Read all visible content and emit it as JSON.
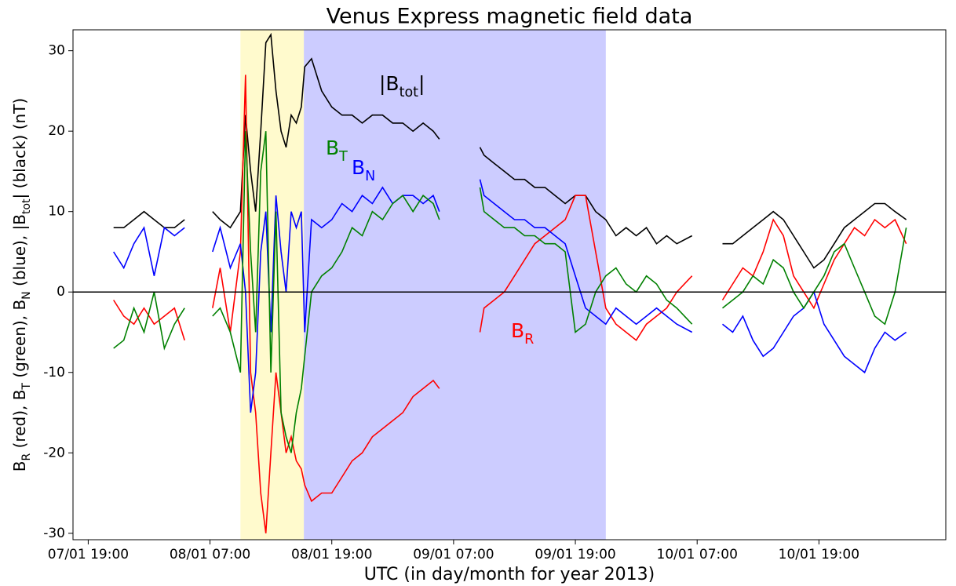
{
  "chart_data": {
    "type": "line",
    "title": "Venus Express magnetic field data",
    "xlabel": "UTC (in day/month for year 2013)",
    "ylabel": [
      "B",
      "R",
      " (red), B",
      "T",
      " (green), B",
      "N",
      " (blue), |B",
      "tot",
      "| (black) (nT)"
    ],
    "x": [
      "07/01 21:30",
      "07/01 22:30",
      "07/01 23:30",
      "08/01 00:30",
      "08/01 01:30",
      "08/01 02:30",
      "08/01 03:30",
      "08/01 04:30",
      "08/01 05:30",
      "08/01 07:15",
      "08/01 08:00",
      "08/01 09:00",
      "08/01 10:00",
      "08/01 10:30",
      "08/01 11:00",
      "08/01 11:30",
      "08/01 12:00",
      "08/01 12:30",
      "08/01 13:00",
      "08/01 13:30",
      "08/01 14:00",
      "08/01 14:30",
      "08/01 15:00",
      "08/01 15:30",
      "08/01 16:00",
      "08/01 16:20",
      "08/01 17:00",
      "08/01 18:00",
      "08/01 19:00",
      "08/01 20:00",
      "08/01 21:00",
      "08/01 22:00",
      "08/01 23:00",
      "09/01 00:00",
      "09/01 01:00",
      "09/01 02:00",
      "09/01 03:00",
      "09/01 04:00",
      "09/01 05:00",
      "09/01 05:36",
      "09/01 07:30",
      "09/01 09:36",
      "09/01 10:00",
      "09/01 11:00",
      "09/01 12:00",
      "09/01 13:00",
      "09/01 14:00",
      "09/01 15:00",
      "09/01 16:00",
      "09/01 17:00",
      "09/01 18:00",
      "09/01 19:00",
      "09/01 20:00",
      "09/01 21:00",
      "09/01 22:00",
      "09/01 23:00",
      "10/01 00:00",
      "10/01 01:00",
      "10/01 02:00",
      "10/01 03:00",
      "10/01 04:00",
      "10/01 05:00",
      "10/01 06:30",
      "10/01 08:00",
      "10/01 09:30",
      "10/01 10:30",
      "10/01 11:30",
      "10/01 12:30",
      "10/01 13:30",
      "10/01 14:30",
      "10/01 15:30",
      "10/01 16:30",
      "10/01 17:30",
      "10/01 18:30",
      "10/01 19:30",
      "10/01 20:30",
      "10/01 21:30",
      "10/01 22:30",
      "10/01 23:30",
      "11/01 00:30",
      "11/01 01:30",
      "11/01 02:30",
      "11/01 03:36"
    ],
    "series": [
      {
        "color": "#000000",
        "values": [
          8,
          8,
          9,
          10,
          9,
          8,
          8,
          9,
          null,
          10,
          9,
          8,
          10,
          22,
          15,
          10,
          20,
          31,
          32,
          25,
          20,
          18,
          22,
          21,
          23,
          28,
          29,
          25,
          23,
          22,
          22,
          21,
          22,
          22,
          21,
          21,
          20,
          21,
          20,
          19,
          null,
          18,
          17,
          16,
          15,
          14,
          14,
          13,
          13,
          12,
          11,
          12,
          12,
          10,
          9,
          7,
          8,
          7,
          8,
          6,
          7,
          6,
          7,
          null,
          6,
          6,
          7,
          8,
          9,
          10,
          9,
          7,
          5,
          3,
          4,
          6,
          8,
          9,
          10,
          11,
          11,
          10,
          9
        ]
      },
      {
        "color": "#ff0000",
        "values": [
          -1,
          -3,
          -4,
          -2,
          -4,
          -3,
          -2,
          -6,
          null,
          -2,
          3,
          -5,
          5,
          27,
          -10,
          -15,
          -25,
          -30,
          -20,
          -10,
          -15,
          -20,
          -18,
          -21,
          -22,
          -24,
          -26,
          -25,
          -25,
          -23,
          -21,
          -20,
          -18,
          -17,
          -16,
          -15,
          -13,
          -12,
          -11,
          -12,
          null,
          -5,
          -2,
          -1,
          0,
          2,
          4,
          6,
          7,
          8,
          9,
          12,
          12,
          5,
          -2,
          -4,
          -5,
          -6,
          -4,
          -3,
          -2,
          0,
          2,
          null,
          -1,
          1,
          3,
          2,
          5,
          9,
          7,
          2,
          0,
          -2,
          1,
          4,
          6,
          8,
          7,
          9,
          8,
          9,
          6
        ]
      },
      {
        "color": "#0000ff",
        "values": [
          5,
          3,
          6,
          8,
          2,
          8,
          7,
          8,
          null,
          5,
          8,
          3,
          6,
          0,
          -15,
          -10,
          5,
          10,
          -5,
          12,
          5,
          0,
          10,
          8,
          10,
          -5,
          9,
          8,
          9,
          11,
          10,
          12,
          11,
          13,
          11,
          12,
          12,
          11,
          12,
          10,
          null,
          14,
          12,
          11,
          10,
          9,
          9,
          8,
          8,
          7,
          6,
          2,
          -2,
          -3,
          -4,
          -2,
          -3,
          -4,
          -3,
          -2,
          -3,
          -4,
          -5,
          null,
          -4,
          -5,
          -3,
          -6,
          -8,
          -7,
          -5,
          -3,
          -2,
          0,
          -4,
          -6,
          -8,
          -9,
          -10,
          -7,
          -5,
          -6,
          -5
        ]
      },
      {
        "color": "#008000",
        "values": [
          -7,
          -6,
          -2,
          -5,
          0,
          -7,
          -4,
          -2,
          null,
          -3,
          -2,
          -5,
          -10,
          20,
          5,
          -5,
          15,
          20,
          -10,
          10,
          -15,
          -18,
          -20,
          -15,
          -12,
          -8,
          0,
          2,
          3,
          5,
          8,
          7,
          10,
          9,
          11,
          12,
          10,
          12,
          11,
          9,
          null,
          13,
          10,
          9,
          8,
          8,
          7,
          7,
          6,
          6,
          5,
          -5,
          -4,
          0,
          2,
          3,
          1,
          0,
          2,
          1,
          -1,
          -2,
          -4,
          null,
          -2,
          -1,
          0,
          2,
          1,
          4,
          3,
          0,
          -2,
          0,
          2,
          5,
          6,
          3,
          0,
          -3,
          -4,
          0,
          8
        ]
      }
    ],
    "annotations": [
      {
        "parts": [
          "|B",
          "tot",
          "|"
        ],
        "color": "#000000"
      },
      {
        "parts": [
          "B",
          "T"
        ],
        "color": "#008000"
      },
      {
        "parts": [
          "B",
          "N"
        ],
        "color": "#0000ff"
      },
      {
        "parts": [
          "B",
          "R"
        ],
        "color": "#ff0000"
      }
    ],
    "spans": [
      {
        "start": "08/01 10:00",
        "end": "08/01 16:15",
        "color": "#fffacd"
      },
      {
        "start": "08/01 16:15",
        "end": "09/01 22:00",
        "color": "#ccccff"
      }
    ],
    "hline": 0,
    "xlim": [
      "07/01 17:30",
      "11/01 07:30"
    ],
    "xticks": [
      "07/01 19:00",
      "08/01 07:00",
      "08/01 19:00",
      "09/01 07:00",
      "09/01 19:00",
      "10/01 07:00",
      "10/01 19:00"
    ],
    "ylim": [
      -30.8,
      32.6
    ],
    "yticks": [
      -30,
      -20,
      -10,
      0,
      10,
      20,
      30
    ],
    "grid": false
  }
}
